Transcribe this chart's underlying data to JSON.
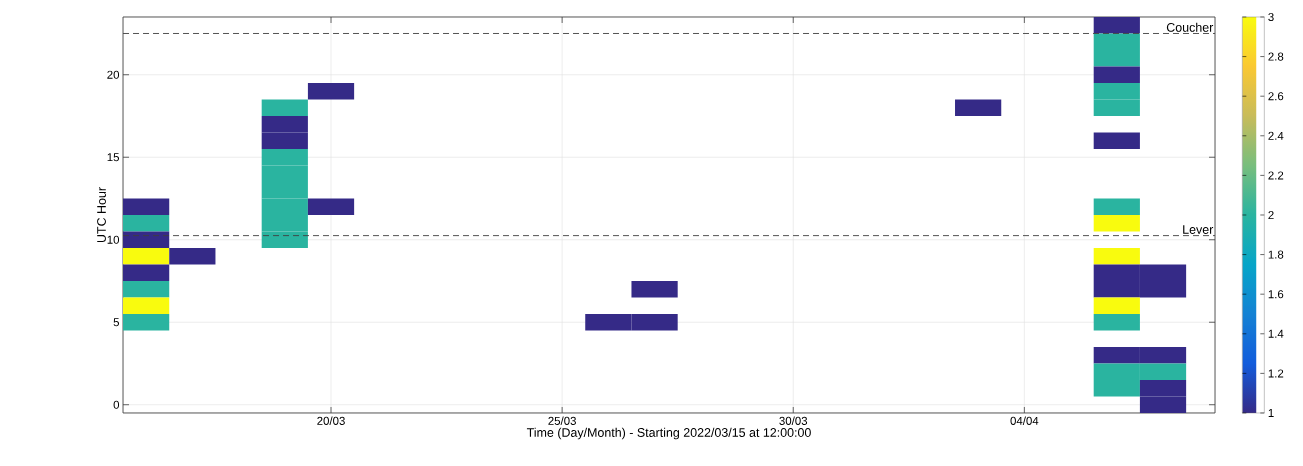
{
  "chart_data": {
    "type": "heatmap",
    "xlabel": "Time (Day/Month) - Starting 2022/03/15 at 12:00:00",
    "ylabel": "UTC Hour",
    "x": [
      "2022-03-16",
      "2022-03-17",
      "2022-03-18",
      "2022-03-19",
      "2022-03-20",
      "2022-03-21",
      "2022-03-22",
      "2022-03-23",
      "2022-03-24",
      "2022-03-25",
      "2022-03-26",
      "2022-03-27",
      "2022-03-28",
      "2022-03-29",
      "2022-03-30",
      "2022-03-31",
      "2022-04-01",
      "2022-04-02",
      "2022-04-03",
      "2022-04-04",
      "2022-04-05",
      "2022-04-06",
      "2022-04-07"
    ],
    "y": [
      23,
      22,
      21,
      20,
      19,
      18,
      17,
      16,
      15,
      14,
      13,
      12,
      11,
      10,
      9,
      8,
      7,
      6,
      5,
      3,
      2,
      1,
      0
    ],
    "cells": [
      [
        null,
        null,
        null,
        null,
        null,
        null,
        null,
        null,
        null,
        null,
        null,
        null,
        null,
        null,
        null,
        null,
        null,
        null,
        null,
        null,
        null,
        1,
        null
      ],
      [
        null,
        null,
        null,
        null,
        null,
        null,
        null,
        null,
        null,
        null,
        null,
        null,
        null,
        null,
        null,
        null,
        null,
        null,
        null,
        null,
        null,
        2,
        null
      ],
      [
        null,
        null,
        null,
        null,
        null,
        null,
        null,
        null,
        null,
        null,
        null,
        null,
        null,
        null,
        null,
        null,
        null,
        null,
        null,
        null,
        null,
        2,
        null
      ],
      [
        null,
        null,
        null,
        null,
        null,
        null,
        null,
        null,
        null,
        null,
        null,
        null,
        null,
        null,
        null,
        null,
        null,
        null,
        null,
        null,
        null,
        1,
        null
      ],
      [
        null,
        null,
        null,
        null,
        1,
        null,
        null,
        null,
        null,
        null,
        null,
        null,
        null,
        null,
        null,
        null,
        null,
        null,
        null,
        null,
        null,
        2,
        null
      ],
      [
        null,
        null,
        null,
        2,
        null,
        null,
        null,
        null,
        null,
        null,
        null,
        null,
        null,
        null,
        null,
        null,
        null,
        null,
        1,
        null,
        null,
        2,
        null
      ],
      [
        null,
        null,
        null,
        1,
        null,
        null,
        null,
        null,
        null,
        null,
        null,
        null,
        null,
        null,
        null,
        null,
        null,
        null,
        null,
        null,
        null,
        null,
        null
      ],
      [
        null,
        null,
        null,
        1,
        null,
        null,
        null,
        null,
        null,
        null,
        null,
        null,
        null,
        null,
        null,
        null,
        null,
        null,
        null,
        null,
        null,
        1,
        null
      ],
      [
        null,
        null,
        null,
        2,
        null,
        null,
        null,
        null,
        null,
        null,
        null,
        null,
        null,
        null,
        null,
        null,
        null,
        null,
        null,
        null,
        null,
        null,
        null
      ],
      [
        null,
        null,
        null,
        2,
        null,
        null,
        null,
        null,
        null,
        null,
        null,
        null,
        null,
        null,
        null,
        null,
        null,
        null,
        null,
        null,
        null,
        null,
        null
      ],
      [
        null,
        null,
        null,
        2,
        null,
        null,
        null,
        null,
        null,
        null,
        null,
        null,
        null,
        null,
        null,
        null,
        null,
        null,
        null,
        null,
        null,
        null,
        null
      ],
      [
        1,
        null,
        null,
        2,
        1,
        null,
        null,
        null,
        null,
        null,
        null,
        null,
        null,
        null,
        null,
        null,
        null,
        null,
        null,
        null,
        null,
        2,
        null
      ],
      [
        2,
        null,
        null,
        2,
        null,
        null,
        null,
        null,
        null,
        null,
        null,
        null,
        null,
        null,
        null,
        null,
        null,
        null,
        null,
        null,
        null,
        3,
        null
      ],
      [
        1,
        null,
        null,
        2,
        null,
        null,
        null,
        null,
        null,
        null,
        null,
        null,
        null,
        null,
        null,
        null,
        null,
        null,
        null,
        null,
        null,
        null,
        null
      ],
      [
        3,
        1,
        null,
        null,
        null,
        null,
        null,
        null,
        null,
        null,
        null,
        null,
        null,
        null,
        null,
        null,
        null,
        null,
        null,
        null,
        null,
        3,
        null
      ],
      [
        1,
        null,
        null,
        null,
        null,
        null,
        null,
        null,
        null,
        null,
        null,
        null,
        null,
        null,
        null,
        null,
        null,
        null,
        null,
        null,
        null,
        1,
        1
      ],
      [
        2,
        null,
        null,
        null,
        null,
        null,
        null,
        null,
        null,
        null,
        null,
        1,
        null,
        null,
        null,
        null,
        null,
        null,
        null,
        null,
        null,
        1,
        1
      ],
      [
        3,
        null,
        null,
        null,
        null,
        null,
        null,
        null,
        null,
        null,
        null,
        null,
        null,
        null,
        null,
        null,
        null,
        null,
        null,
        null,
        null,
        3,
        null
      ],
      [
        2,
        null,
        null,
        null,
        null,
        null,
        null,
        null,
        null,
        null,
        1,
        1,
        null,
        null,
        null,
        null,
        null,
        null,
        null,
        null,
        null,
        2,
        null
      ],
      [
        null,
        null,
        null,
        null,
        null,
        null,
        null,
        null,
        null,
        null,
        null,
        null,
        null,
        null,
        null,
        null,
        null,
        null,
        null,
        null,
        null,
        1,
        1
      ],
      [
        null,
        null,
        null,
        null,
        null,
        null,
        null,
        null,
        null,
        null,
        null,
        null,
        null,
        null,
        null,
        null,
        null,
        null,
        null,
        null,
        null,
        2,
        2
      ],
      [
        null,
        null,
        null,
        null,
        null,
        null,
        null,
        null,
        null,
        null,
        null,
        null,
        null,
        null,
        null,
        null,
        null,
        null,
        null,
        null,
        null,
        2,
        1
      ],
      [
        null,
        null,
        null,
        null,
        null,
        null,
        null,
        null,
        null,
        null,
        null,
        null,
        null,
        null,
        null,
        null,
        null,
        null,
        null,
        null,
        null,
        null,
        1
      ]
    ],
    "xlim": [
      "2022-03-15T12:00",
      "2022-04-08T03:00"
    ],
    "xticks": [
      {
        "value": "2022-03-20",
        "label": "20/03"
      },
      {
        "value": "2022-03-25",
        "label": "25/03"
      },
      {
        "value": "2022-03-30",
        "label": "30/03"
      },
      {
        "value": "2022-04-04",
        "label": "04/04"
      }
    ],
    "ylim": [
      -0.5,
      23.5
    ],
    "yticks": [
      0,
      5,
      10,
      15,
      20
    ],
    "clim": [
      1,
      3
    ],
    "cticks": [
      1,
      1.2,
      1.4,
      1.6,
      1.8,
      2,
      2.2,
      2.4,
      2.6,
      2.8,
      3
    ],
    "grid": true,
    "ref_lines": [
      {
        "axis": "y",
        "value": 22.5,
        "label": "Coucher",
        "color": "#404040",
        "line_style": "dashed"
      },
      {
        "axis": "y",
        "value": 10.25,
        "label": "Lever",
        "color": "#404040",
        "line_style": "dashed"
      }
    ]
  }
}
